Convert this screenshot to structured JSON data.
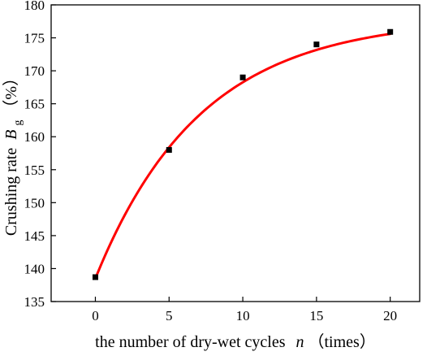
{
  "chart_data": {
    "type": "scatter",
    "title": "",
    "xlabel": {
      "prefix": "the number of dry-wet cycles",
      "var": "n",
      "suffix": "（times）"
    },
    "ylabel": {
      "prefix": "Crushing rate",
      "var": "B",
      "sub": "g",
      "suffix": "（%）"
    },
    "xlim": [
      -3,
      22
    ],
    "ylim": [
      135,
      180
    ],
    "xticks": [
      0,
      5,
      10,
      15,
      20
    ],
    "yticks": [
      135,
      140,
      145,
      150,
      155,
      160,
      165,
      170,
      175,
      180
    ],
    "series": [
      {
        "marker": "square",
        "color": "#000000",
        "x": [
          0,
          5,
          10,
          15,
          20
        ],
        "y": [
          138.7,
          158.0,
          169.0,
          174.0,
          175.9
        ]
      }
    ],
    "fit": {
      "color": "#ff0000",
      "form": "exponential",
      "y0": 138.5,
      "A": 39.5,
      "k": 0.14,
      "x_range": [
        0,
        20
      ]
    },
    "grid": false,
    "legend": "none"
  }
}
